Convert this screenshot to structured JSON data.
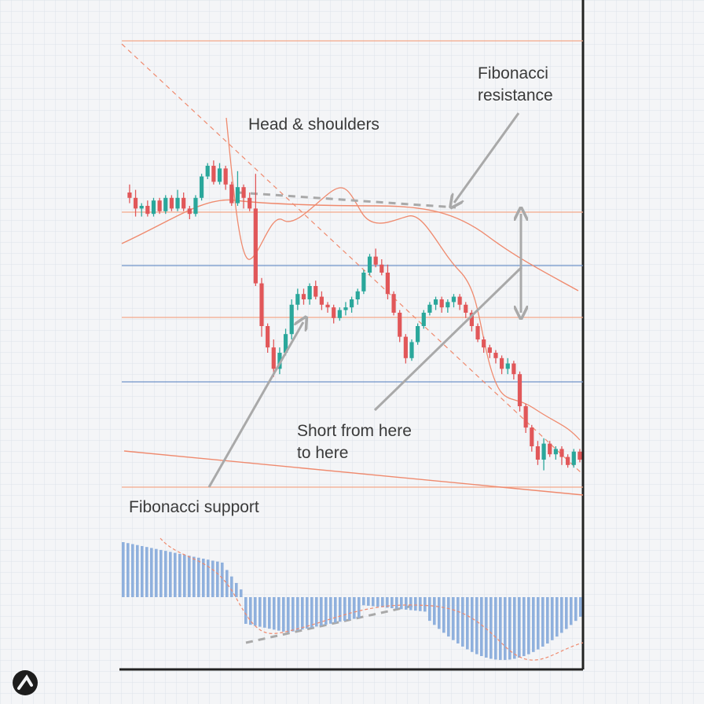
{
  "chart_data": {
    "type": "candlestick",
    "annotations": {
      "head_shoulders": "Head & shoulders",
      "fib_resistance_line1": "Fibonacci",
      "fib_resistance_line2": "resistance",
      "short_line1": "Short from here",
      "short_line2": "to here",
      "fib_support": "Fibonacci support"
    },
    "colors": {
      "up": "#2aa79b",
      "down": "#e15759",
      "fib_level": "#f3a98a",
      "blue_level": "#6f93c8",
      "moving_average": "#ef8a6e",
      "histogram": "#8fb0dd",
      "arrow": "#a9a9a9",
      "grid": "#dde2ea",
      "frame": "#222222"
    },
    "brand": {
      "name": "Investopedia"
    },
    "candles": [
      [
        6,
        0,
        -2,
        3,
        -4
      ],
      [
        8,
        -2,
        -6,
        1,
        -9
      ],
      [
        10,
        -6,
        -5,
        -4,
        -9
      ],
      [
        12,
        -5,
        -8,
        -3,
        -9
      ],
      [
        14,
        -8,
        -3,
        -2,
        -9
      ],
      [
        16,
        -3,
        -7,
        -2,
        -8
      ],
      [
        18,
        -7,
        -2,
        -1,
        -8
      ],
      [
        20,
        -2,
        -6,
        -1,
        -7
      ],
      [
        22,
        -6,
        -2,
        1,
        -7
      ],
      [
        24,
        -2,
        -6,
        0,
        -7
      ],
      [
        26,
        -6,
        -8,
        -5,
        -10
      ],
      [
        28,
        -8,
        -2,
        -1,
        -9
      ],
      [
        30,
        -2,
        6,
        7,
        -3
      ],
      [
        32,
        6,
        10,
        11,
        5
      ],
      [
        34,
        10,
        4,
        12,
        3
      ],
      [
        36,
        4,
        9,
        11,
        3
      ],
      [
        38,
        9,
        3,
        10,
        1
      ],
      [
        40,
        3,
        -4,
        4,
        -5
      ],
      [
        42,
        -4,
        2,
        8,
        -5
      ],
      [
        44,
        2,
        -2,
        3,
        -6
      ],
      [
        46,
        -2,
        -6,
        0,
        -7
      ],
      [
        48,
        -6,
        -34,
        7,
        -35
      ],
      [
        50,
        -34,
        -50,
        -32,
        -54
      ],
      [
        52,
        -50,
        -58,
        -49,
        -60
      ],
      [
        54,
        -58,
        -66,
        -55,
        -69
      ],
      [
        56,
        -66,
        -60,
        -58,
        -68
      ],
      [
        58,
        -60,
        -53,
        -51,
        -61
      ],
      [
        60,
        -53,
        -42,
        -40,
        -55
      ],
      [
        62,
        -42,
        -38,
        -36,
        -44
      ],
      [
        64,
        -38,
        -40,
        -36,
        -42
      ],
      [
        66,
        -40,
        -35,
        -34,
        -42
      ],
      [
        68,
        -35,
        -39,
        -33,
        -40
      ],
      [
        70,
        -39,
        -42,
        -37,
        -44
      ],
      [
        72,
        -42,
        -43,
        -41,
        -45
      ],
      [
        74,
        -43,
        -47,
        -42,
        -49
      ],
      [
        76,
        -47,
        -44,
        -43,
        -48
      ],
      [
        78,
        -44,
        -43,
        -41,
        -46
      ],
      [
        80,
        -43,
        -40,
        -39,
        -45
      ],
      [
        82,
        -40,
        -37,
        -36,
        -42
      ],
      [
        84,
        -37,
        -30,
        -29,
        -38
      ],
      [
        86,
        -30,
        -24,
        -23,
        -31
      ],
      [
        88,
        -24,
        -27,
        -21,
        -28
      ],
      [
        90,
        -27,
        -30,
        -25,
        -31
      ],
      [
        92,
        -30,
        -38,
        -27,
        -40
      ],
      [
        94,
        -38,
        -45,
        -37,
        -46
      ],
      [
        96,
        -45,
        -54,
        -44,
        -56
      ],
      [
        98,
        -54,
        -62,
        -53,
        -64
      ],
      [
        100,
        -62,
        -56,
        -55,
        -63
      ],
      [
        102,
        -56,
        -50,
        -49,
        -57
      ],
      [
        104,
        -50,
        -45,
        -44,
        -51
      ],
      [
        106,
        -45,
        -42,
        -41,
        -46
      ],
      [
        108,
        -42,
        -40,
        -39,
        -44
      ],
      [
        110,
        -40,
        -43,
        -39,
        -45
      ],
      [
        112,
        -43,
        -41,
        -40,
        -45
      ],
      [
        114,
        -41,
        -39,
        -38,
        -43
      ],
      [
        116,
        -39,
        -42,
        -38,
        -44
      ],
      [
        118,
        -42,
        -45,
        -41,
        -47
      ],
      [
        120,
        -45,
        -50,
        -44,
        -52
      ],
      [
        122,
        -50,
        -55,
        -49,
        -56
      ],
      [
        124,
        -55,
        -58,
        -54,
        -60
      ],
      [
        126,
        -58,
        -60,
        -57,
        -62
      ],
      [
        128,
        -60,
        -62,
        -59,
        -64
      ],
      [
        130,
        -62,
        -66,
        -61,
        -68
      ],
      [
        132,
        -66,
        -64,
        -62,
        -68
      ],
      [
        134,
        -64,
        -68,
        -63,
        -70
      ],
      [
        136,
        -68,
        -80,
        -67,
        -82
      ],
      [
        138,
        -80,
        -88,
        -79,
        -90
      ],
      [
        140,
        -88,
        -95,
        -87,
        -97
      ],
      [
        142,
        -95,
        -100,
        -93,
        -102
      ],
      [
        144,
        -100,
        -94,
        -92,
        -104
      ],
      [
        146,
        -94,
        -98,
        -93,
        -99
      ],
      [
        148,
        -98,
        -96,
        -95,
        -100
      ],
      [
        150,
        -96,
        -99,
        -95,
        -102
      ],
      [
        152,
        -99,
        -102,
        -98,
        -103
      ],
      [
        154,
        -102,
        -97,
        -96,
        -103
      ],
      [
        156,
        -97,
        -100,
        -96,
        -101
      ]
    ]
  }
}
